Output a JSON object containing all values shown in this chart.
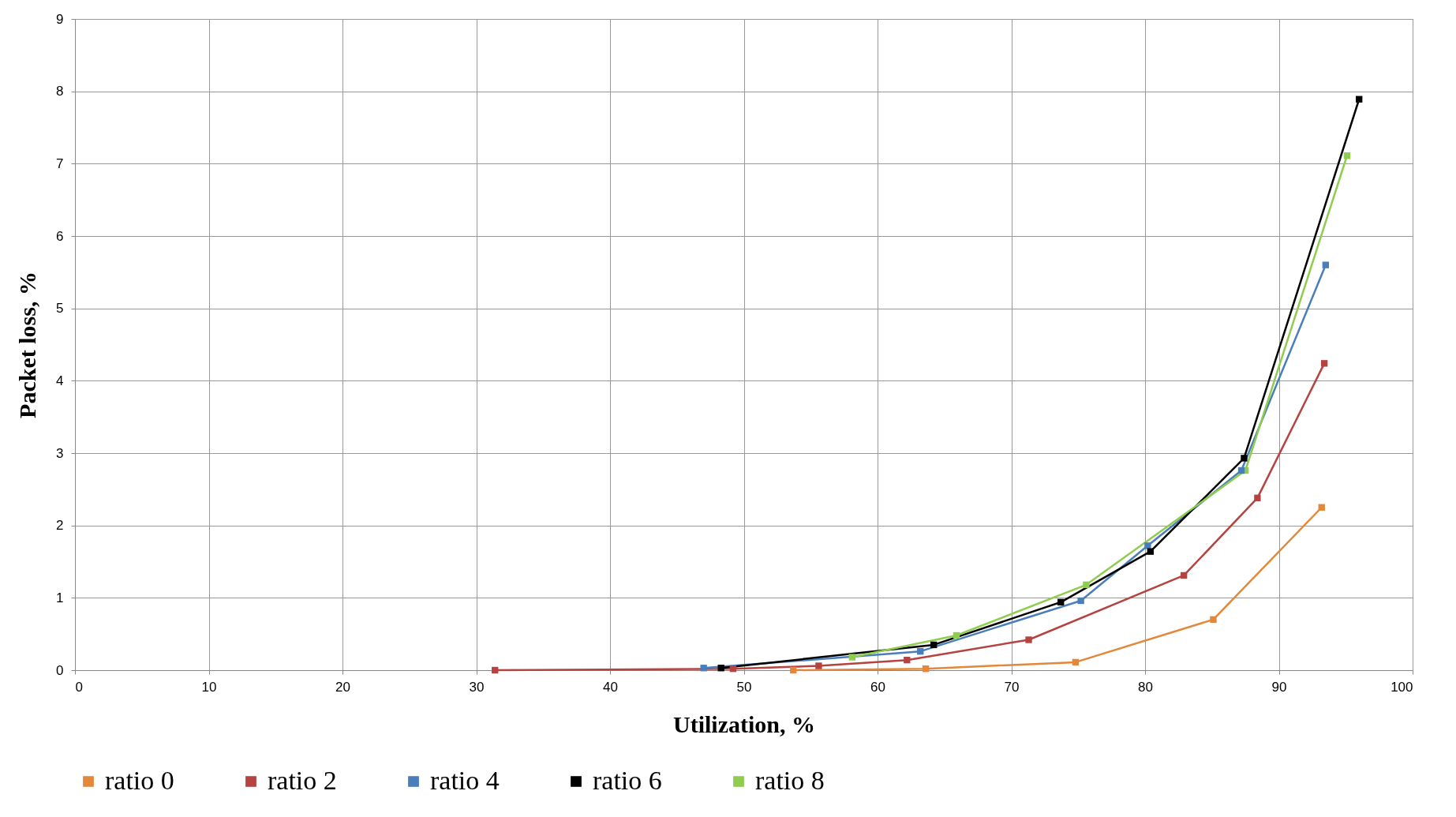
{
  "chart_data": {
    "type": "line",
    "xlabel": "Utilization, %",
    "ylabel": "Packet loss, %",
    "xlim": [
      0,
      100
    ],
    "xticks": [
      0,
      10,
      20,
      30,
      40,
      50,
      60,
      70,
      80,
      90,
      100
    ],
    "ylim": [
      0,
      9
    ],
    "yticks": [
      0,
      1,
      2,
      3,
      4,
      5,
      6,
      7,
      8,
      9
    ],
    "grid": true,
    "legend": "bottom",
    "marker": "square",
    "line_style": "solid",
    "series": [
      {
        "name": "ratio 0",
        "color": "#e3883a",
        "x": [
          53.7,
          63.6,
          74.8,
          85.1,
          93.2
        ],
        "values": [
          0,
          0.02,
          0.11,
          0.7,
          2.25
        ]
      },
      {
        "name": "ratio 2",
        "color": "#b5433f",
        "x": [
          31.4,
          49.2,
          55.6,
          62.2,
          71.3,
          82.9,
          88.4,
          93.4
        ],
        "values": [
          0,
          0.02,
          0.06,
          0.14,
          0.42,
          1.31,
          2.38,
          4.24
        ]
      },
      {
        "name": "ratio 4",
        "color": "#4a7ebb",
        "x": [
          47.0,
          63.2,
          75.2,
          80.2,
          87.2,
          93.5
        ],
        "values": [
          0.03,
          0.26,
          0.96,
          1.72,
          2.76,
          5.6
        ]
      },
      {
        "name": "ratio 6",
        "color": "#000000",
        "x": [
          48.3,
          64.2,
          73.7,
          80.4,
          87.4,
          96.0
        ],
        "values": [
          0.03,
          0.35,
          0.94,
          1.64,
          2.93,
          7.89
        ]
      },
      {
        "name": "ratio 8",
        "color": "#8fcc4f",
        "x": [
          58.1,
          65.9,
          75.6,
          87.5,
          95.1
        ],
        "values": [
          0.18,
          0.48,
          1.18,
          2.76,
          7.11
        ]
      }
    ]
  }
}
